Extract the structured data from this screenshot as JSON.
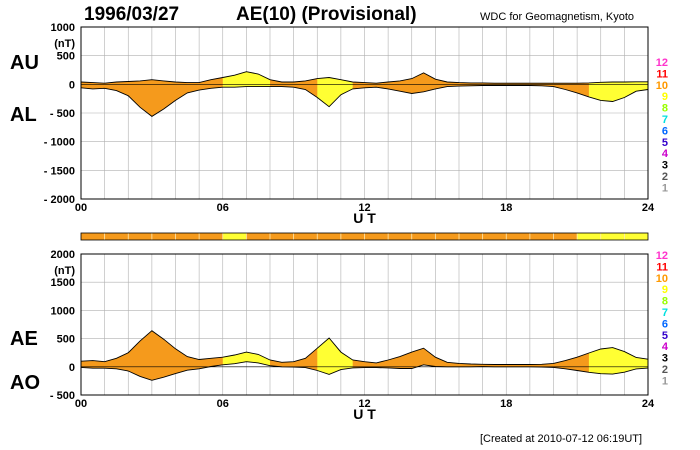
{
  "header": {
    "date": "1996/03/27",
    "title": "AE(10) (Provisional)",
    "source": "WDC for Geomagnetism, Kyoto",
    "created": "[Created at 2010-07-12 06:19UT]"
  },
  "colors": {
    "fill_orange": "#f59a1c",
    "fill_yellow": "#ffff33",
    "outline": "#000000",
    "grid": "#b0b0b0"
  },
  "scale_legend": {
    "labels": [
      "12",
      "11",
      "10",
      "9",
      "8",
      "7",
      "6",
      "5",
      "4",
      "3",
      "2",
      "1"
    ],
    "colors": [
      "#ff33cc",
      "#ff0000",
      "#ff9900",
      "#ffff00",
      "#99ff00",
      "#00e0e0",
      "#0066ff",
      "#3300cc",
      "#cc00cc",
      "#000000",
      "#555555",
      "#999999"
    ]
  },
  "chart_data": [
    {
      "type": "area",
      "upper_label": "AU",
      "lower_label": "AL",
      "ylabel": "(nT)",
      "xlabel": "U T",
      "xlim": [
        0,
        24
      ],
      "ylim": [
        -2000,
        1000
      ],
      "x_ticks": [
        "00",
        "06",
        "12",
        "18",
        "24"
      ],
      "y_ticks": [
        "1000",
        "500",
        "0",
        "- 500",
        "- 1000",
        "- 1500",
        "- 2000"
      ],
      "y_tick_values": [
        1000,
        500,
        0,
        -500,
        -1000,
        -1500,
        -2000
      ],
      "grid": true,
      "series": [
        {
          "name": "AU",
          "x": [
            0,
            0.5,
            1,
            1.5,
            2,
            2.5,
            3,
            3.5,
            4,
            4.5,
            5,
            5.5,
            6,
            6.5,
            7,
            7.5,
            8,
            8.5,
            9,
            9.5,
            10,
            10.5,
            11,
            11.5,
            12,
            12.5,
            13,
            13.5,
            14,
            14.5,
            15,
            15.5,
            16,
            16.5,
            17,
            17.5,
            18,
            18.5,
            19,
            19.5,
            20,
            20.5,
            21,
            21.5,
            22,
            22.5,
            23,
            23.5,
            24
          ],
          "values": [
            40,
            30,
            20,
            40,
            50,
            60,
            80,
            60,
            40,
            30,
            30,
            80,
            120,
            160,
            220,
            180,
            80,
            40,
            40,
            60,
            100,
            120,
            80,
            40,
            30,
            20,
            40,
            60,
            100,
            200,
            90,
            40,
            30,
            25,
            25,
            20,
            20,
            20,
            20,
            20,
            20,
            20,
            20,
            25,
            35,
            40,
            40,
            45,
            45
          ]
        },
        {
          "name": "AL",
          "x": [
            0,
            0.5,
            1,
            1.5,
            2,
            2.5,
            3,
            3.5,
            4,
            4.5,
            5,
            5.5,
            6,
            6.5,
            7,
            7.5,
            8,
            8.5,
            9,
            9.5,
            10,
            10.5,
            11,
            11.5,
            12,
            12.5,
            13,
            13.5,
            14,
            14.5,
            15,
            15.5,
            16,
            16.5,
            17,
            17.5,
            18,
            18.5,
            19,
            19.5,
            20,
            20.5,
            21,
            21.5,
            22,
            22.5,
            23,
            23.5,
            24
          ],
          "values": [
            -60,
            -80,
            -70,
            -110,
            -200,
            -400,
            -560,
            -430,
            -280,
            -150,
            -100,
            -70,
            -50,
            -50,
            -40,
            -40,
            -40,
            -40,
            -50,
            -90,
            -230,
            -390,
            -180,
            -80,
            -60,
            -50,
            -80,
            -120,
            -160,
            -130,
            -80,
            -40,
            -30,
            -25,
            -20,
            -20,
            -20,
            -20,
            -20,
            -25,
            -40,
            -90,
            -150,
            -220,
            -280,
            -300,
            -230,
            -120,
            -90
          ]
        }
      ],
      "activity_bands": [
        {
          "x": [
            0,
            6
          ],
          "level": "orange"
        },
        {
          "x": [
            6,
            7
          ],
          "level": "yellow"
        },
        {
          "x": [
            7,
            21
          ],
          "level": "orange"
        },
        {
          "x": [
            21,
            24
          ],
          "level": "yellow"
        }
      ]
    },
    {
      "type": "area",
      "upper_label": "AE",
      "lower_label": "AO",
      "ylabel": "(nT)",
      "xlabel": "U T",
      "xlim": [
        0,
        24
      ],
      "ylim": [
        -500,
        2000
      ],
      "x_ticks": [
        "00",
        "06",
        "12",
        "18",
        "24"
      ],
      "y_ticks": [
        "2000",
        "1500",
        "1000",
        "500",
        "0",
        "- 500"
      ],
      "y_tick_values": [
        2000,
        1500,
        1000,
        500,
        0,
        -500
      ],
      "grid": true,
      "series": [
        {
          "name": "AE",
          "x": [
            0,
            0.5,
            1,
            1.5,
            2,
            2.5,
            3,
            3.5,
            4,
            4.5,
            5,
            5.5,
            6,
            6.5,
            7,
            7.5,
            8,
            8.5,
            9,
            9.5,
            10,
            10.5,
            11,
            11.5,
            12,
            12.5,
            13,
            13.5,
            14,
            14.5,
            15,
            15.5,
            16,
            16.5,
            17,
            17.5,
            18,
            18.5,
            19,
            19.5,
            20,
            20.5,
            21,
            21.5,
            22,
            22.5,
            23,
            23.5,
            24
          ],
          "values": [
            100,
            110,
            90,
            150,
            250,
            460,
            640,
            490,
            320,
            180,
            130,
            150,
            170,
            210,
            260,
            220,
            120,
            80,
            90,
            150,
            330,
            510,
            260,
            120,
            90,
            70,
            120,
            180,
            260,
            330,
            170,
            80,
            60,
            50,
            45,
            40,
            40,
            40,
            40,
            45,
            60,
            110,
            170,
            245,
            315,
            340,
            270,
            165,
            135
          ]
        },
        {
          "name": "AO",
          "x": [
            0,
            0.5,
            1,
            1.5,
            2,
            2.5,
            3,
            3.5,
            4,
            4.5,
            5,
            5.5,
            6,
            6.5,
            7,
            7.5,
            8,
            8.5,
            9,
            9.5,
            10,
            10.5,
            11,
            11.5,
            12,
            12.5,
            13,
            13.5,
            14,
            14.5,
            15,
            15.5,
            16,
            16.5,
            17,
            17.5,
            18,
            18.5,
            19,
            19.5,
            20,
            20.5,
            21,
            21.5,
            22,
            22.5,
            23,
            23.5,
            24
          ],
          "values": [
            -10,
            -25,
            -25,
            -35,
            -75,
            -170,
            -240,
            -185,
            -120,
            -60,
            -35,
            5,
            35,
            55,
            90,
            70,
            20,
            0,
            -5,
            -15,
            -65,
            -135,
            -50,
            -20,
            -15,
            -15,
            -20,
            -30,
            -30,
            35,
            5,
            0,
            0,
            0,
            3,
            0,
            0,
            0,
            0,
            -3,
            -10,
            -35,
            -65,
            -98,
            -123,
            -130,
            -95,
            -38,
            -23
          ]
        }
      ]
    }
  ]
}
